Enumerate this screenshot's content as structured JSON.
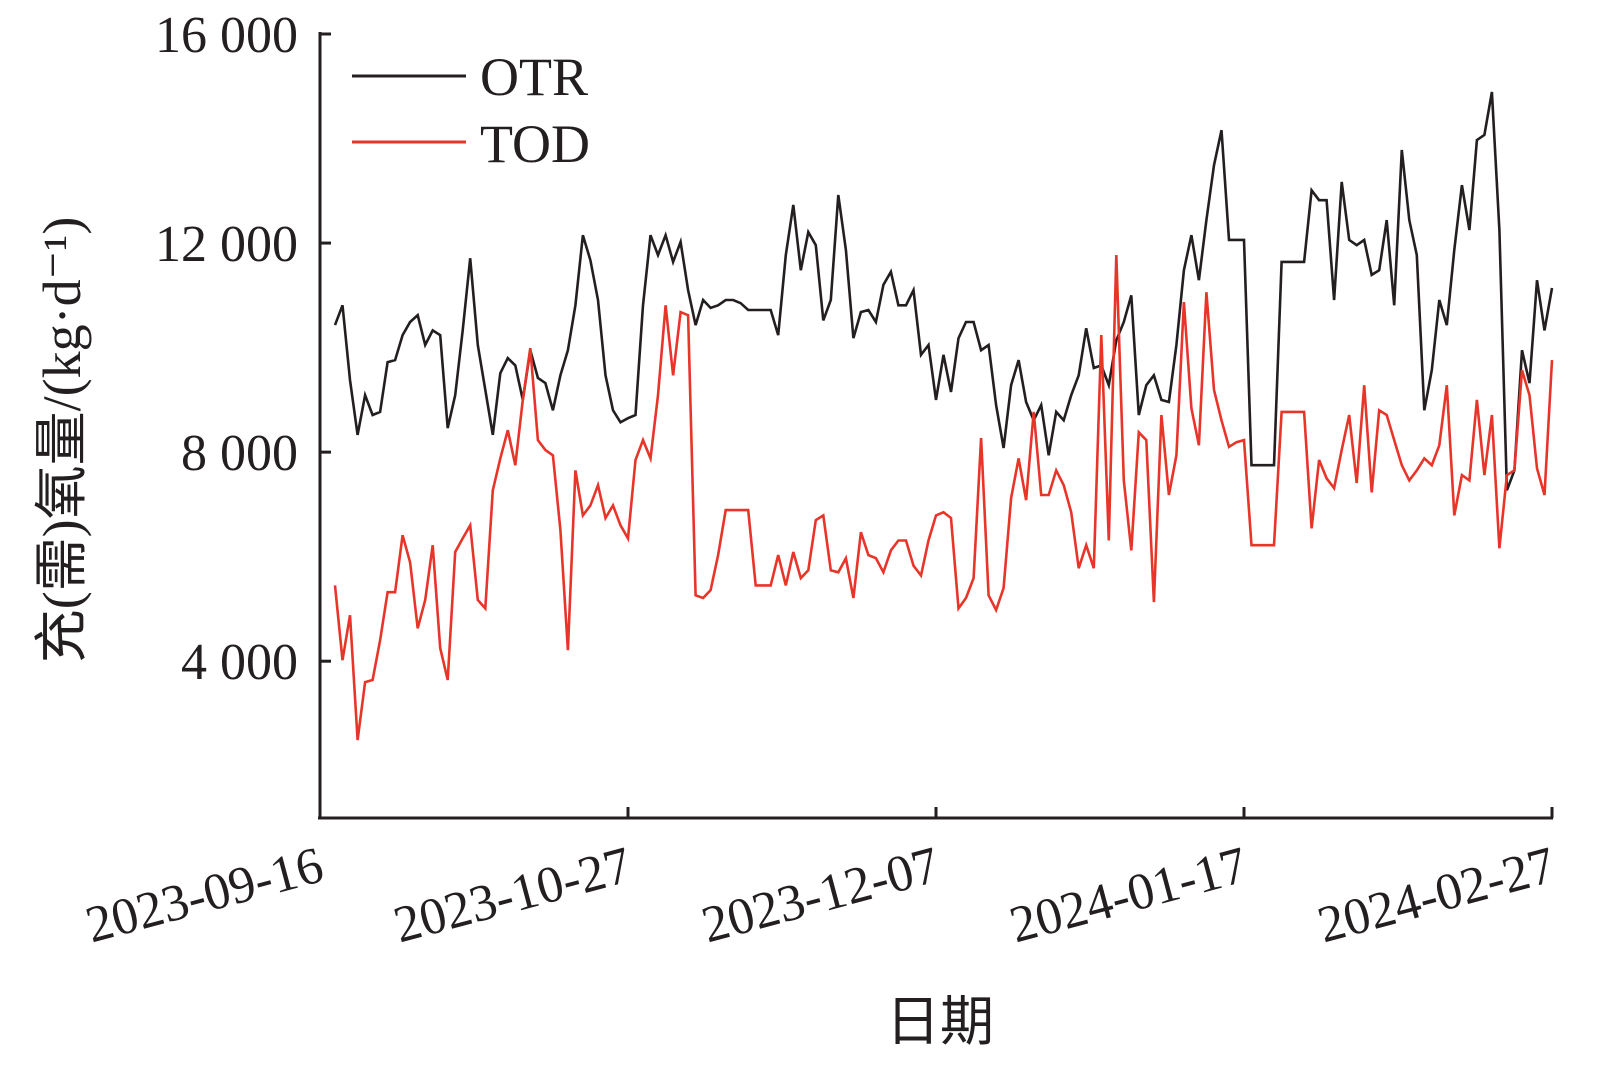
{
  "chart_data": {
    "type": "line",
    "title": "",
    "xlabel": "日期",
    "ylabel": "充(需)氧量/(kg·d⁻¹)",
    "x_start": "2023-09-18",
    "x_end": "2024-02-27",
    "xlim_days_from_2023_09_16": [
      0,
      164
    ],
    "xticks": [
      "2023-09-16",
      "2023-10-27",
      "2023-12-07",
      "2024-01-17",
      "2024-02-27"
    ],
    "yticks": [
      4000,
      8000,
      12000,
      16000
    ],
    "ytick_labels": [
      "4 000",
      "8 000",
      "12 000",
      "16 000"
    ],
    "ylim": [
      1000,
      16000
    ],
    "grid": false,
    "legend_position": "top-left",
    "series": [
      {
        "name": "OTR",
        "color": "#231f20",
        "values": [
          10430,
          10810,
          9380,
          8330,
          9090,
          8710,
          8770,
          9720,
          9760,
          10240,
          10490,
          10620,
          10050,
          10330,
          10240,
          8460,
          9090,
          10330,
          11710,
          10050,
          9190,
          8330,
          9510,
          9800,
          9660,
          9000,
          9950,
          9420,
          9320,
          8800,
          9470,
          9950,
          10810,
          12150,
          11670,
          10910,
          9470,
          8800,
          8570,
          8650,
          8710,
          10810,
          12150,
          11770,
          12150,
          11640,
          12020,
          11100,
          10430,
          10910,
          10760,
          10810,
          10910,
          10910,
          10850,
          10720,
          10720,
          10720,
          10720,
          10240,
          11770,
          12730,
          11480,
          12210,
          11960,
          10520,
          10910,
          12920,
          11870,
          10180,
          10680,
          10720,
          10490,
          11200,
          11450,
          10810,
          10810,
          11100,
          9860,
          10050,
          9000,
          9860,
          9150,
          10180,
          10490,
          10490,
          9950,
          10050,
          8900,
          8080,
          9280,
          9760,
          8960,
          8610,
          8900,
          7940,
          8770,
          8610,
          9090,
          9470,
          10370,
          9610,
          9660,
          9280,
          10140,
          10490,
          11000,
          8710,
          9280,
          9470,
          9000,
          8960,
          10050,
          11480,
          12150,
          11290,
          12440,
          13490,
          14160,
          12060,
          12060,
          12060,
          7750,
          7750,
          7750,
          7750,
          11640,
          11640,
          11640,
          11640,
          13010,
          12820,
          12820,
          10910,
          13170,
          12060,
          11960,
          12060,
          11390,
          11480,
          12440,
          10810,
          13780,
          12440,
          11770,
          8800,
          9570,
          10910,
          10430,
          11870,
          13110,
          12250,
          13970,
          14070,
          14890,
          12250,
          7270,
          7650,
          9950,
          9320,
          11290,
          10330,
          11140
        ]
      },
      {
        "name": "TOD",
        "color": "#e8352a",
        "values": [
          5450,
          4020,
          4880,
          2490,
          3600,
          3640,
          4400,
          5320,
          5320,
          6410,
          5890,
          4630,
          5170,
          6220,
          4250,
          3640,
          6090,
          6350,
          6600,
          5170,
          5010,
          7270,
          7880,
          8420,
          7750,
          9000,
          9990,
          8230,
          8040,
          7940,
          6510,
          4210,
          7650,
          6790,
          6980,
          7370,
          6740,
          6980,
          6600,
          6350,
          7850,
          8230,
          7880,
          9090,
          10810,
          9470,
          10680,
          10620,
          5260,
          5210,
          5360,
          6030,
          6890,
          6890,
          6890,
          6890,
          5450,
          5450,
          5450,
          6030,
          5450,
          6090,
          5590,
          5740,
          6700,
          6790,
          5740,
          5700,
          5970,
          5210,
          6470,
          6030,
          5970,
          5700,
          6120,
          6310,
          6310,
          5830,
          5640,
          6310,
          6790,
          6850,
          6740,
          5010,
          5210,
          5590,
          8270,
          5260,
          4980,
          5400,
          7120,
          7880,
          7080,
          8770,
          7180,
          7180,
          7650,
          7370,
          6850,
          5780,
          6220,
          5780,
          10240,
          6310,
          11770,
          7460,
          6120,
          8380,
          8230,
          5130,
          8710,
          7180,
          7940,
          10870,
          8840,
          8130,
          11060,
          9190,
          8610,
          8100,
          8190,
          8230,
          6220,
          6220,
          6220,
          6220,
          8770,
          8770,
          8770,
          8770,
          6540,
          7850,
          7500,
          7310,
          8040,
          8710,
          7410,
          9280,
          7230,
          8800,
          8710,
          8230,
          7750,
          7460,
          7650,
          7880,
          7750,
          8130,
          9280,
          6790,
          7560,
          7460,
          9000,
          7560,
          8710,
          6160,
          7560,
          7650,
          9570,
          9090,
          7690,
          7180,
          9760
        ]
      }
    ]
  }
}
